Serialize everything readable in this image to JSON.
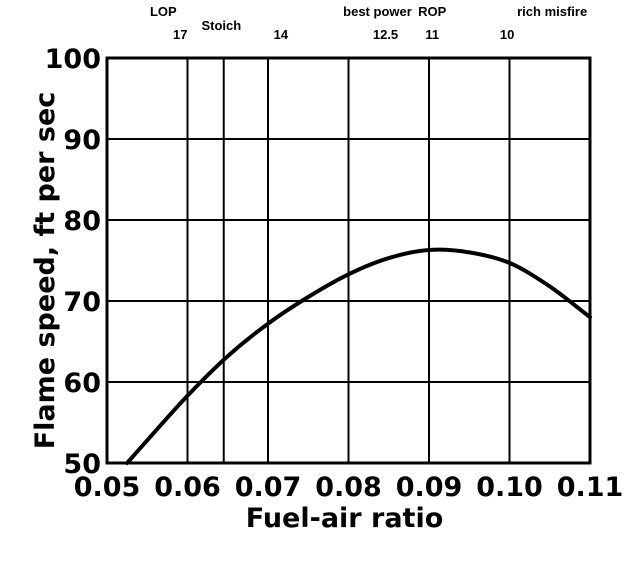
{
  "chart_data": {
    "type": "line",
    "xlabel": "Fuel-air ratio",
    "ylabel": "Flame speed, ft per sec",
    "xlim": [
      0.05,
      0.11
    ],
    "ylim": [
      50,
      100
    ],
    "grid": true,
    "x_ticks": [
      0.05,
      0.06,
      0.07,
      0.08,
      0.09,
      0.1,
      0.11
    ],
    "x_tick_labels": [
      "0.05",
      "0.06",
      "0.07",
      "0.08",
      "0.09",
      "0.10",
      "0.11"
    ],
    "y_ticks": [
      50,
      60,
      70,
      80,
      90,
      100
    ],
    "y_tick_labels": [
      "50",
      "60",
      "70",
      "80",
      "90",
      "100"
    ],
    "vertical_markers": [
      0.0645
    ],
    "series": [
      {
        "x": [
          0.0525,
          0.055,
          0.06,
          0.065,
          0.07,
          0.075,
          0.08,
          0.085,
          0.09,
          0.095,
          0.1,
          0.105,
          0.11
        ],
        "values": [
          50.0,
          52.8,
          58.3,
          63.2,
          67.2,
          70.5,
          73.3,
          75.3,
          76.3,
          76.0,
          74.7,
          71.8,
          68.0
        ]
      }
    ],
    "annotations": [
      {
        "text": "LOP",
        "x": 0.057,
        "row": "upper"
      },
      {
        "text": "17",
        "x": 0.0591,
        "row": "lower"
      },
      {
        "text": "Stoich",
        "x": 0.0642,
        "row": "middle"
      },
      {
        "text": "14",
        "x": 0.0716,
        "row": "lower"
      },
      {
        "text": "best power",
        "x": 0.0836,
        "row": "upper"
      },
      {
        "text": "12.5",
        "x": 0.0846,
        "row": "lower"
      },
      {
        "text": "ROP",
        "x": 0.0904,
        "row": "upper"
      },
      {
        "text": "11",
        "x": 0.0904,
        "row": "lower"
      },
      {
        "text": "10",
        "x": 0.0997,
        "row": "lower"
      },
      {
        "text": "rich misfire",
        "x": 0.1053,
        "row": "upper"
      }
    ]
  }
}
